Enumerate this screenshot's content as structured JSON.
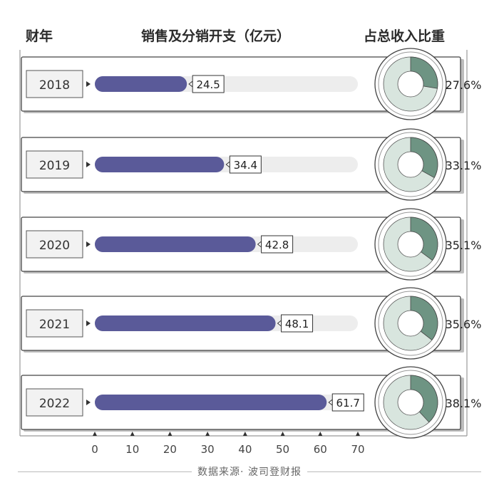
{
  "header": {
    "year_label": "财年",
    "spend_label": "销售及分销开支（亿元）",
    "ratio_label": "占总收入比重"
  },
  "source": "数据来源·  波司登财报",
  "colors": {
    "bar": "#5a5a99",
    "track": "#ededed",
    "donut_fill": "#6e9483",
    "donut_rest": "#d8e5de",
    "panel_border": "#444444"
  },
  "chart_data": {
    "type": "bar",
    "categories": [
      "2018",
      "2019",
      "2020",
      "2021",
      "2022"
    ],
    "series": [
      {
        "name": "销售及分销开支（亿元）",
        "values": [
          24.5,
          34.4,
          42.8,
          48.1,
          61.7
        ]
      },
      {
        "name": "占总收入比重",
        "values": [
          27.6,
          33.1,
          35.1,
          35.6,
          38.1
        ]
      }
    ],
    "value_labels": [
      "24.5",
      "34.4",
      "42.8",
      "48.1",
      "61.7"
    ],
    "ratio_labels": [
      "27.6%",
      "33.1%",
      "35.1%",
      "35.6%",
      "38.1%"
    ],
    "xlim": [
      0,
      70
    ],
    "xticks": [
      0,
      10,
      20,
      30,
      40,
      50,
      60,
      70
    ],
    "xlabel": "",
    "ylabel": ""
  }
}
